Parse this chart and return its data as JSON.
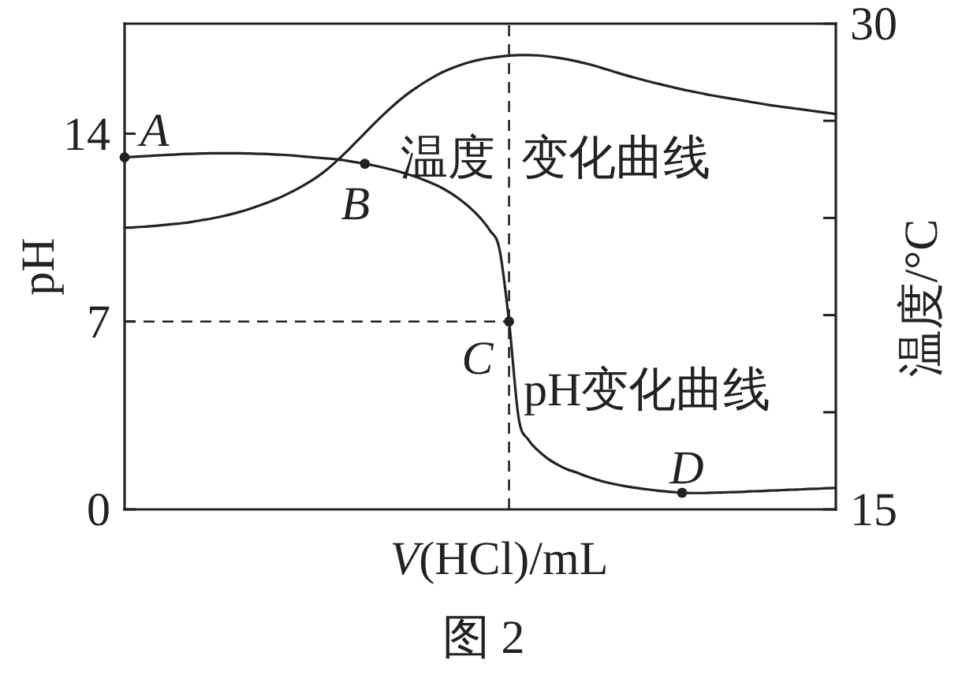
{
  "chart_data": {
    "type": "line",
    "xlabel": "*V*(HCl)/mL",
    "ylabel": "pH",
    "y2label": "温度/°C",
    "categories": [
      null,
      null,
      null,
      null,
      null,
      null,
      null,
      null,
      null,
      null,
      null,
      null,
      null,
      null,
      null,
      null,
      null,
      null,
      null,
      null,
      null,
      null,
      null,
      null,
      null,
      null,
      null,
      null,
      null,
      null,
      null,
      null,
      null,
      null,
      null,
      null,
      null,
      null,
      null,
      null,
      null,
      null,
      null,
      null,
      null,
      null,
      null,
      null,
      null,
      null,
      null,
      null,
      null,
      null,
      null,
      null,
      null,
      null,
      null,
      null,
      null,
      null,
      null,
      null,
      null,
      null,
      null,
      null,
      null,
      null,
      null,
      null,
      null,
      null,
      null
    ],
    "ylim": [
      0,
      18.1
    ],
    "yticks": [
      0,
      7,
      14
    ],
    "y2lim": [
      15,
      30
    ],
    "y2ticks": [
      15,
      {
        "value": 18,
        "label": null
      },
      {
        "value": 21,
        "label": null
      },
      {
        "value": 24,
        "label": null
      },
      {
        "value": 27,
        "label": null
      },
      30
    ],
    "series": [
      {
        "name": "温度 变化曲线",
        "color": "#222222",
        "axis": "y2",
        "values": [
          23.7,
          23.71,
          23.73,
          23.75,
          23.78,
          23.81,
          23.84,
          23.88,
          23.93,
          23.98,
          24.04,
          24.11,
          24.19,
          24.28,
          24.38,
          24.49,
          24.61,
          24.75,
          24.9,
          25.07,
          25.26,
          25.48,
          25.74,
          26.02,
          26.32,
          26.62,
          26.92,
          27.21,
          27.48,
          27.73,
          27.95,
          28.15,
          28.33,
          28.49,
          28.62,
          28.73,
          28.82,
          28.89,
          28.94,
          28.98,
          29.01,
          29.03,
          29.03,
          29.02,
          28.99,
          28.95,
          28.9,
          28.84,
          28.77,
          28.69,
          28.6,
          28.51,
          28.42,
          28.34,
          28.26,
          28.18,
          28.11,
          28.04,
          27.97,
          27.91,
          27.85,
          27.79,
          27.74,
          27.69,
          27.64,
          27.59,
          27.54,
          27.49,
          27.45,
          27.41,
          27.37,
          27.33,
          27.29,
          27.25,
          27.21
        ]
      },
      {
        "name": "pH变化曲线",
        "color": "#222222",
        "values": [
          13.12,
          13.14,
          13.16,
          13.18,
          13.2,
          13.22,
          13.24,
          13.25,
          13.26,
          13.27,
          13.27,
          13.27,
          13.27,
          13.26,
          13.25,
          13.24,
          13.22,
          13.2,
          13.17,
          13.14,
          13.11,
          13.08,
          13.05,
          13.0,
          12.94,
          12.88,
          12.81,
          12.73,
          12.64,
          12.54,
          12.43,
          12.3,
          12.15,
          11.98,
          11.77,
          11.52,
          11.22,
          10.86,
          10.4,
          9.7,
          7,
          3.4,
          2.6,
          2.2,
          1.9,
          1.68,
          1.5,
          1.38,
          1.24,
          1.12,
          1.02,
          0.94,
          0.87,
          0.81,
          0.76,
          0.72,
          0.68,
          0.65,
          0.62,
          0.61,
          0.61,
          0.62,
          0.63,
          0.64,
          0.65,
          0.67,
          0.68,
          0.7,
          0.71,
          0.73,
          0.74,
          0.76,
          0.77,
          0.79,
          0.8
        ]
      },
      {
        "type": "scatter",
        "color": "#222222",
        "marker": "circle",
        "values": [
          13.12,
          null,
          null,
          null,
          null,
          null,
          null,
          null,
          null,
          null,
          null,
          null,
          null,
          null,
          null,
          null,
          null,
          null,
          null,
          null,
          null,
          null,
          null,
          null,
          null,
          12.88,
          null,
          null,
          null,
          null,
          null,
          null,
          null,
          null,
          null,
          null,
          null,
          null,
          null,
          null,
          7,
          null,
          null,
          null,
          null,
          null,
          null,
          null,
          null,
          null,
          null,
          null,
          null,
          null,
          null,
          null,
          null,
          null,
          0.62,
          null,
          null,
          null,
          null,
          null,
          null,
          null,
          null,
          null,
          null,
          null,
          null,
          null,
          null,
          null,
          null
        ]
      }
    ],
    "ref_lines": [
      {
        "axis": "y",
        "value": 7,
        "line_style": "dashed"
      }
    ],
    "annotations": [
      {
        "text": "A",
        "y": 13.12
      },
      {
        "text": "B",
        "y": 12.88
      },
      {
        "text": "C",
        "y": 7
      },
      {
        "text": "D",
        "y": 0.62
      },
      "图 2"
    ]
  }
}
